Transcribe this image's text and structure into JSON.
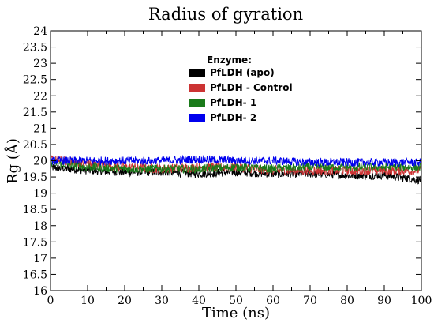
{
  "chart_data": {
    "type": "line",
    "title": "Radius of gyration",
    "xlabel": "Time (ns)",
    "ylabel": "Rg (Å)",
    "xlim": [
      0,
      100
    ],
    "ylim": [
      16,
      24
    ],
    "x_ticks": [
      "0",
      "10",
      "20",
      "30",
      "40",
      "50",
      "60",
      "70",
      "80",
      "90",
      "100"
    ],
    "y_ticks": [
      "16",
      "16.5",
      "17",
      "17.5",
      "18",
      "18.5",
      "19",
      "19.5",
      "20",
      "20.5",
      "21",
      "21.5",
      "22",
      "22.5",
      "23",
      "23.5",
      "24"
    ],
    "grid": false,
    "legend": {
      "title": "Enzyme:",
      "placement": "upper-center"
    },
    "series": [
      {
        "name": "PfLDH (apo)",
        "color": "#000000",
        "mean": 19.65,
        "noise": 0.08,
        "x": [
          0,
          10,
          20,
          30,
          40,
          50,
          60,
          70,
          80,
          90,
          100
        ],
        "values": [
          19.8,
          19.7,
          19.65,
          19.65,
          19.6,
          19.65,
          19.6,
          19.6,
          19.55,
          19.55,
          19.4
        ]
      },
      {
        "name": "PfLDH - Control",
        "color": "#cc3333",
        "mean": 19.85,
        "noise": 0.09,
        "x": [
          0,
          10,
          20,
          30,
          40,
          50,
          60,
          70,
          80,
          90,
          100
        ],
        "values": [
          20.05,
          19.9,
          19.8,
          19.75,
          19.8,
          19.8,
          19.7,
          19.7,
          19.7,
          19.7,
          19.7
        ]
      },
      {
        "name": "PfLDH- 1",
        "color": "#1a7a1a",
        "mean": 19.8,
        "noise": 0.08,
        "x": [
          0,
          10,
          20,
          30,
          40,
          50,
          60,
          70,
          80,
          90,
          100
        ],
        "values": [
          19.95,
          19.8,
          19.75,
          19.75,
          19.75,
          19.8,
          19.75,
          19.8,
          19.8,
          19.8,
          19.8
        ]
      },
      {
        "name": "PfLDH- 2",
        "color": "#0000ee",
        "mean": 20.0,
        "noise": 0.08,
        "x": [
          0,
          10,
          20,
          30,
          40,
          50,
          60,
          70,
          80,
          90,
          100
        ],
        "values": [
          20.0,
          20.0,
          20.0,
          20.0,
          20.05,
          20.0,
          20.0,
          19.95,
          19.95,
          19.95,
          19.95
        ]
      }
    ]
  }
}
